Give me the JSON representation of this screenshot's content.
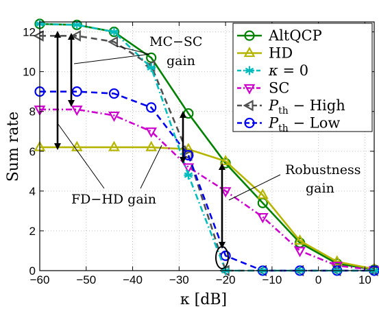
{
  "chart_data": {
    "type": "line",
    "xlabel": "κ  [dB]",
    "ylabel": "Sum rate",
    "xlim": [
      -60,
      12
    ],
    "ylim": [
      0,
      12.5
    ],
    "xticks": [
      -60,
      -50,
      -40,
      -30,
      -20,
      -10,
      0,
      10
    ],
    "yticks": [
      0,
      2,
      4,
      6,
      8,
      10,
      12
    ],
    "grid": true,
    "legend_position": "top-right",
    "series": [
      {
        "name": "AltQCP",
        "color": "#008000",
        "line_style": "solid",
        "marker": "circle",
        "x": [
          -60,
          -52,
          -44,
          -36,
          -28,
          -20,
          -12,
          -4,
          4,
          12
        ],
        "y": [
          12.4,
          12.35,
          12.0,
          10.7,
          7.9,
          5.4,
          3.4,
          1.4,
          0.35,
          0.05
        ]
      },
      {
        "name": "HD",
        "color": "#b5b500",
        "line_style": "solid",
        "marker": "triangle-up",
        "x": [
          -60,
          -52,
          -44,
          -36,
          -28,
          -20,
          -12,
          -4,
          4,
          12
        ],
        "y": [
          6.2,
          6.2,
          6.2,
          6.2,
          6.1,
          5.5,
          3.8,
          1.5,
          0.45,
          0.08
        ]
      },
      {
        "name": "κ = 0",
        "color": "#00bcbc",
        "line_style": "dash-dot",
        "marker": "asterisk",
        "x": [
          -60,
          -52,
          -44,
          -36,
          -28,
          -20,
          -12,
          -4,
          4,
          12
        ],
        "y": [
          12.4,
          12.35,
          12.0,
          10.2,
          4.8,
          0.0,
          0.0,
          0.0,
          0.0,
          0.0
        ]
      },
      {
        "name": "SC",
        "color": "#cc00cc",
        "line_style": "dash-dot",
        "marker": "triangle-down",
        "x": [
          -60,
          -52,
          -44,
          -36,
          -28,
          -20,
          -12,
          -4,
          4,
          12
        ],
        "y": [
          8.1,
          8.1,
          7.8,
          7.0,
          5.2,
          4.0,
          2.7,
          1.0,
          0.25,
          0.03
        ]
      },
      {
        "name": "P_th − High",
        "color": "#505050",
        "line_style": "dashed",
        "marker": "triangle-left",
        "x": [
          -60,
          -52,
          -44,
          -36,
          -28,
          -20,
          -12,
          -4,
          4,
          12
        ],
        "y": [
          11.8,
          11.8,
          11.5,
          10.3,
          5.8,
          0.0,
          0.0,
          0.0,
          0.0,
          0.0
        ]
      },
      {
        "name": "P_th − Low",
        "color": "#0000ee",
        "line_style": "dashed",
        "marker": "circle",
        "x": [
          -60,
          -52,
          -44,
          -36,
          -28,
          -20,
          -12,
          -4,
          4,
          12
        ],
        "y": [
          9.0,
          9.0,
          8.9,
          8.2,
          5.8,
          0.75,
          0.0,
          0.0,
          0.0,
          0.0
        ]
      }
    ],
    "annotations": [
      {
        "text": "MC−SC",
        "text2": "gain"
      },
      {
        "text": "FD−HD gain"
      },
      {
        "text": "Robustness",
        "text2": "gain"
      }
    ]
  }
}
